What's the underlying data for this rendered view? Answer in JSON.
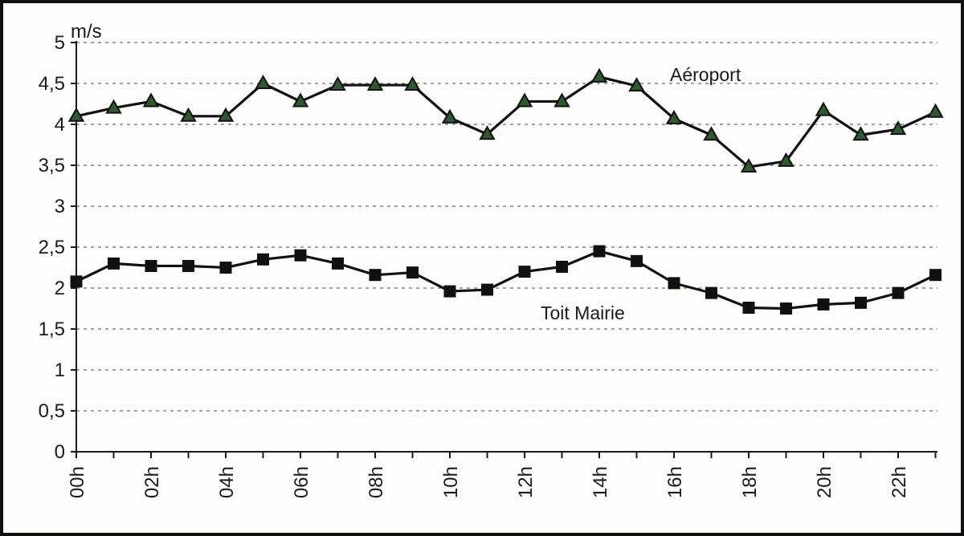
{
  "chart_data": {
    "type": "line",
    "ylabel": "m/s",
    "ylim": [
      0,
      5
    ],
    "yticks": [
      "0",
      "0,5",
      "1",
      "1,5",
      "2",
      "2,5",
      "3",
      "3,5",
      "4",
      "4,5",
      "5"
    ],
    "categories": [
      "00h",
      "01h",
      "02h",
      "03h",
      "04h",
      "05h",
      "06h",
      "07h",
      "08h",
      "09h",
      "10h",
      "11h",
      "12h",
      "13h",
      "14h",
      "15h",
      "16h",
      "17h",
      "18h",
      "19h",
      "20h",
      "21h",
      "22h",
      "23h"
    ],
    "xtick_labels": [
      "00h",
      "02h",
      "04h",
      "06h",
      "08h",
      "10h",
      "12h",
      "14h",
      "16h",
      "18h",
      "20h",
      "22h"
    ],
    "grid": true,
    "series": [
      {
        "name": "Aéroport",
        "marker": "triangle",
        "marker_color": "#2f5a2f",
        "values": [
          4.1,
          4.2,
          4.28,
          4.1,
          4.1,
          4.5,
          4.28,
          4.48,
          4.48,
          4.48,
          4.08,
          3.88,
          4.28,
          4.28,
          4.58,
          4.47,
          4.07,
          3.87,
          3.48,
          3.55,
          4.17,
          3.87,
          3.94,
          4.15
        ]
      },
      {
        "name": "Toit Mairie",
        "marker": "square",
        "marker_color": "#111111",
        "values": [
          2.08,
          2.3,
          2.27,
          2.27,
          2.25,
          2.35,
          2.4,
          2.3,
          2.16,
          2.19,
          1.96,
          1.98,
          2.2,
          2.26,
          2.45,
          2.33,
          2.06,
          1.94,
          1.76,
          1.75,
          1.8,
          1.82,
          1.94,
          2.16
        ]
      }
    ]
  }
}
